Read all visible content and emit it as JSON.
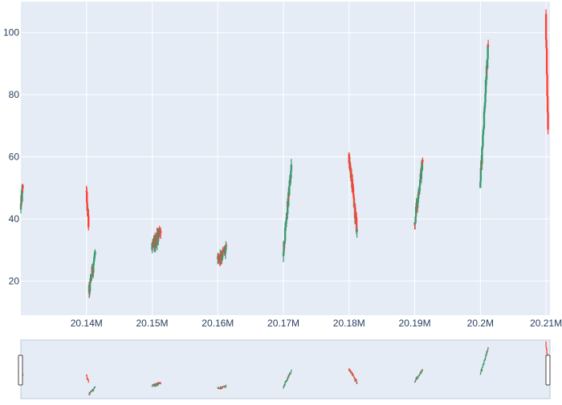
{
  "chart_data": {
    "type": "candlestick",
    "title": "",
    "xlabel": "",
    "ylabel": "",
    "x_tick_labels": [
      "20.14M",
      "20.15M",
      "20.16M",
      "20.17M",
      "20.18M",
      "20.19M",
      "20.2M",
      "20.21M"
    ],
    "x_ticks": [
      20140000,
      20150000,
      20160000,
      20170000,
      20180000,
      20190000,
      20200000,
      20210000
    ],
    "y_ticks": [
      20,
      40,
      60,
      80,
      100
    ],
    "xlim": [
      20130000,
      20210600
    ],
    "ylim": [
      9,
      110
    ],
    "grid": true,
    "legend": "none",
    "rangeslider": true,
    "colors": {
      "increasing": "#3d9970",
      "decreasing": "#ff4136",
      "plot_bg": "#e5ecf6",
      "grid": "#ffffff"
    },
    "clusters": [
      {
        "segments": [
          {
            "x": [
              20130000,
              20130300
            ],
            "y": [
              43,
              51
            ]
          }
        ]
      },
      {
        "segments": [
          {
            "x": [
              20140000,
              20140300
            ],
            "y": [
              49,
              38
            ]
          },
          {
            "x": [
              20140400,
              20141300
            ],
            "y": [
              16,
              29
            ]
          }
        ]
      },
      {
        "segments": [
          {
            "x": [
              20150000,
              20151300
            ],
            "y": [
              30,
              37
            ]
          }
        ]
      },
      {
        "segments": [
          {
            "x": [
              20160000,
              20161300
            ],
            "y": [
              27,
              30
            ]
          }
        ]
      },
      {
        "segments": [
          {
            "x": [
              20170000,
              20171200
            ],
            "y": [
              28,
              57
            ]
          }
        ]
      },
      {
        "segments": [
          {
            "x": [
              20180000,
              20181200
            ],
            "y": [
              61,
              36
            ]
          }
        ]
      },
      {
        "segments": [
          {
            "x": [
              20190000,
              20191200
            ],
            "y": [
              38,
              59
            ]
          }
        ]
      },
      {
        "segments": [
          {
            "x": [
              20200000,
              20201200
            ],
            "y": [
              50,
              97
            ]
          }
        ]
      },
      {
        "segments": [
          {
            "x": [
              20210000,
              20210300
            ],
            "y": [
              106,
              68
            ]
          }
        ]
      }
    ]
  }
}
